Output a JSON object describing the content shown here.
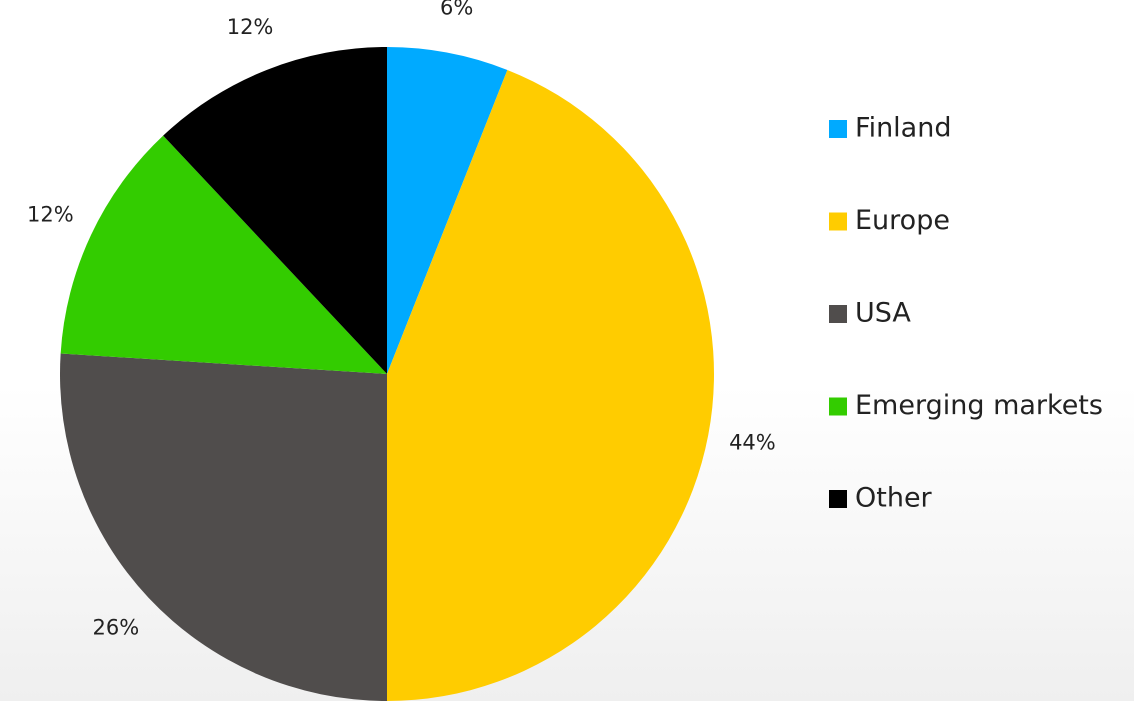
{
  "chart_data": {
    "type": "pie",
    "categories": [
      "Finland",
      "Europe",
      "USA",
      "Emerging markets",
      "Other"
    ],
    "values": [
      6,
      44,
      26,
      12,
      12
    ],
    "value_labels": [
      "6%",
      "44%",
      "26%",
      "12%",
      "12%"
    ],
    "colors": [
      "#00aaff",
      "#ffcc00",
      "#504d4c",
      "#33cc00",
      "#000000"
    ],
    "legend": "right"
  }
}
